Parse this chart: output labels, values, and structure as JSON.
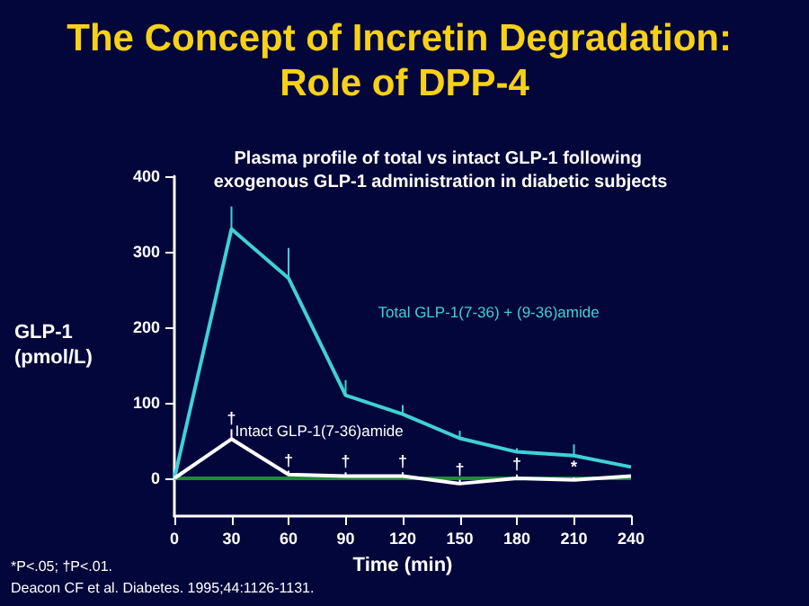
{
  "chart_data": {
    "type": "line",
    "title": "The Concept of Incretin Degradation: Role of DPP-4",
    "subtitle": "Plasma profile of total vs intact GLP-1 following exogenous GLP-1 administration in diabetic subjects",
    "xlabel": "Time (min)",
    "ylabel": "GLP-1 (pmol/L)",
    "x": [
      0,
      30,
      60,
      90,
      120,
      150,
      180,
      210,
      240
    ],
    "xlim": [
      0,
      240
    ],
    "xticks": [
      0,
      30,
      60,
      90,
      120,
      150,
      180,
      210,
      240
    ],
    "ylim": [
      -50,
      400
    ],
    "yticks": [
      0,
      100,
      200,
      300,
      400
    ],
    "grid": false,
    "legend": false,
    "marker": "none",
    "line_style": "solid",
    "series": [
      {
        "name": "Total GLP-1(7-36) + (9-36)amide",
        "color": "#3fd0d8",
        "values": [
          0,
          330,
          265,
          110,
          85,
          53,
          35,
          30,
          15
        ],
        "errors": [
          null,
          [
            330,
            360
          ],
          [
            265,
            305
          ],
          [
            110,
            130
          ],
          [
            85,
            97
          ],
          [
            53,
            63
          ],
          [
            35,
            40
          ],
          [
            30,
            45
          ],
          null
        ]
      },
      {
        "name": "Intact GLP-1(7-36)amide",
        "color": "#ffffff",
        "values": [
          0,
          52,
          5,
          3,
          3,
          -7,
          0,
          -2,
          3
        ],
        "errors": [
          null,
          [
            52,
            65
          ],
          [
            5,
            10
          ],
          [
            3,
            8
          ],
          [
            3,
            8
          ],
          [
            -7,
            -2
          ],
          [
            0,
            5
          ],
          [
            -2,
            1
          ],
          null
        ]
      }
    ],
    "ref_lines": [
      {
        "axis": "y",
        "value": 0,
        "color": "#1f8a3a"
      }
    ],
    "annotations": [
      "†",
      "†",
      "†",
      "†",
      "†",
      "†",
      "*",
      "*P<.05; †P<.01.",
      "Deacon CF et al. Diabetes. 1995;44:1126-1131."
    ]
  }
}
